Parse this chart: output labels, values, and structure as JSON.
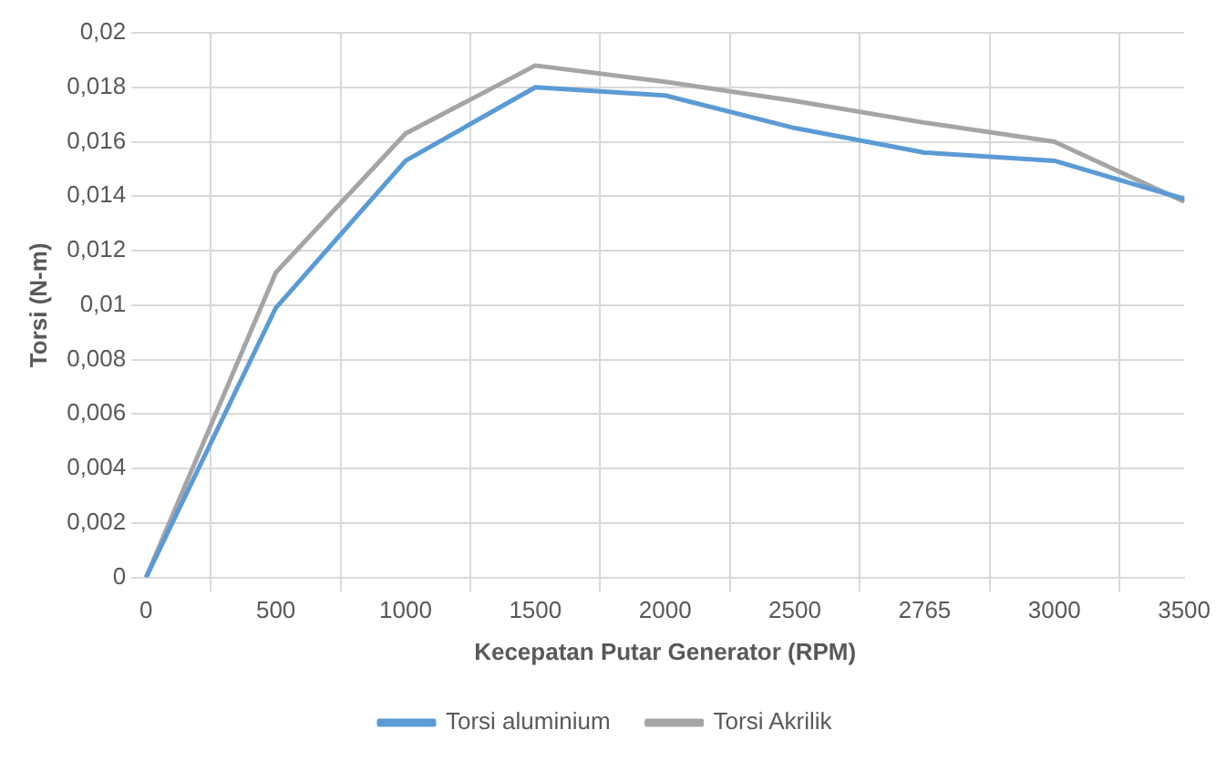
{
  "chart_data": {
    "type": "line",
    "xlabel": "Kecepatan Putar Generator (RPM)",
    "ylabel": "Torsi (N-m)",
    "categories": [
      "0",
      "500",
      "1000",
      "1500",
      "2000",
      "2500",
      "2765",
      "3000",
      "3500"
    ],
    "series": [
      {
        "name": "Torsi aluminium",
        "color": "#5b9bd5",
        "values": [
          0,
          0.0099,
          0.0153,
          0.018,
          0.0177,
          0.0165,
          0.0156,
          0.0153,
          0.0139
        ]
      },
      {
        "name": "Torsi Akrilik",
        "color": "#a5a5a5",
        "values": [
          0,
          0.0112,
          0.0163,
          0.0188,
          0.0182,
          0.0175,
          0.0167,
          0.016,
          0.0138
        ]
      }
    ],
    "ylim": [
      0,
      0.02
    ],
    "yticks": [
      {
        "value": 0,
        "label": "0"
      },
      {
        "value": 0.002,
        "label": "0,002"
      },
      {
        "value": 0.004,
        "label": "0,004"
      },
      {
        "value": 0.006,
        "label": "0,006"
      },
      {
        "value": 0.008,
        "label": "0,008"
      },
      {
        "value": 0.01,
        "label": "0,01"
      },
      {
        "value": 0.012,
        "label": "0,012"
      },
      {
        "value": 0.014,
        "label": "0,014"
      },
      {
        "value": 0.016,
        "label": "0,016"
      },
      {
        "value": 0.018,
        "label": "0,018"
      },
      {
        "value": 0.02,
        "label": "0,02"
      }
    ],
    "grid": true,
    "legend": "bottom",
    "marker": "none",
    "line_style": "solid"
  }
}
